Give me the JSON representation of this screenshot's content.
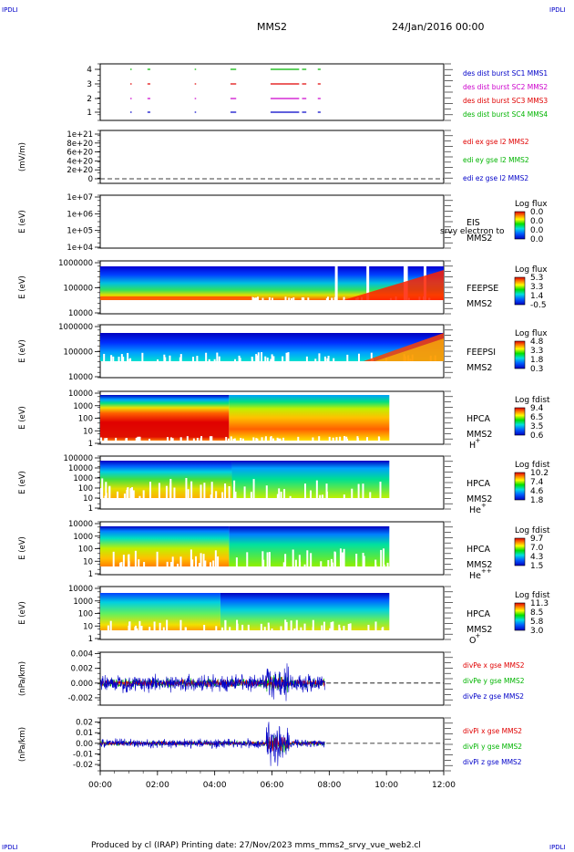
{
  "header": {
    "corner_tl": "IPDLI",
    "corner_tr": "IPDLI",
    "corner_bl": "IPDLI",
    "corner_br": "IPDLI",
    "mission": "MMS2",
    "date": "24/Jan/2016 00:00"
  },
  "footer": "Produced by cl (IRAP)   Printing date: 27/Nov/2023   mms_mms2_srvy_vue_web2.cl",
  "colors": {
    "blue": "#0000c8",
    "magenta": "#cc00cc",
    "red": "#e00000",
    "green": "#00b400"
  },
  "chart_data": [
    {
      "type": "line",
      "panel": "des_burst",
      "yticks": [
        "1",
        "2",
        "3",
        "4"
      ],
      "legend": [
        {
          "label": "des dist burst SC1 MMS1",
          "color": "#0000c8"
        },
        {
          "label": "des dist burst SC2 MMS2",
          "color": "#cc00cc"
        },
        {
          "label": "des dist burst SC3 MMS3",
          "color": "#e00000"
        },
        {
          "label": "des dist burst SC4 MMS4",
          "color": "#00b400"
        }
      ],
      "bursts_hours": [
        [
          1.05,
          1.1
        ],
        [
          1.65,
          1.75
        ],
        [
          3.3,
          3.35
        ],
        [
          4.55,
          4.75
        ],
        [
          5.95,
          6.95
        ],
        [
          7.05,
          7.2
        ],
        [
          7.6,
          7.7
        ]
      ]
    },
    {
      "type": "line",
      "panel": "edi_e",
      "ylabel": "(mV/m)",
      "yticks": [
        "0",
        "2e+20",
        "4e+20",
        "6e+20",
        "8e+20",
        "1e+21"
      ],
      "legend": [
        {
          "label": "edi ex gse l2 MMS2",
          "color": "#e00000"
        },
        {
          "label": "edi ey gse l2 MMS2",
          "color": "#00b400"
        },
        {
          "label": "edi ez gse l2 MMS2",
          "color": "#0000c8"
        }
      ]
    },
    {
      "type": "heatmap",
      "panel": "eis",
      "ylabel": "E (eV)",
      "yticks": [
        "1e+04",
        "1e+05",
        "1e+06",
        "1e+07"
      ],
      "name_lines": [
        "EIS",
        "MMS2"
      ],
      "overlay": "srvy electron to",
      "cbar_title": "Log flux",
      "cbar_ticks": [
        "0.0",
        "0.0",
        "0.0",
        "0.0"
      ]
    },
    {
      "type": "heatmap",
      "panel": "feepse",
      "ylabel": "E (eV)",
      "yticks": [
        "10000",
        "100000",
        "1000000"
      ],
      "name_lines": [
        "FEEPSE",
        "MMS2"
      ],
      "cbar_title": "Log flux",
      "cbar_ticks": [
        "5.3",
        "3.3",
        "1.4",
        "-0.5"
      ]
    },
    {
      "type": "heatmap",
      "panel": "feepsi",
      "ylabel": "E (eV)",
      "yticks": [
        "10000",
        "100000",
        "1000000"
      ],
      "name_lines": [
        "FEEPSI",
        "MMS2"
      ],
      "cbar_title": "Log flux",
      "cbar_ticks": [
        "4.8",
        "3.3",
        "1.8",
        "0.3"
      ]
    },
    {
      "type": "heatmap",
      "panel": "hpca_h",
      "ylabel": "E (eV)",
      "yticks": [
        "1",
        "10",
        "100",
        "1000",
        "10000"
      ],
      "name_lines": [
        "HPCA",
        "MMS2"
      ],
      "species": "H",
      "charge": "+",
      "cbar_title": "Log fdist",
      "cbar_ticks": [
        "9.4",
        "6.5",
        "3.5",
        "0.6"
      ]
    },
    {
      "type": "heatmap",
      "panel": "hpca_he",
      "ylabel": "E (eV)",
      "yticks": [
        "1",
        "10",
        "100",
        "1000",
        "10000",
        "100000"
      ],
      "name_lines": [
        "HPCA",
        "MMS2"
      ],
      "species": "He",
      "charge": "+",
      "cbar_title": "Log fdist",
      "cbar_ticks": [
        "10.2",
        "7.4",
        "4.6",
        "1.8"
      ]
    },
    {
      "type": "heatmap",
      "panel": "hpca_hepp",
      "ylabel": "E (eV)",
      "yticks": [
        "1",
        "10",
        "100",
        "1000",
        "10000"
      ],
      "name_lines": [
        "HPCA",
        "MMS2"
      ],
      "species": "He",
      "charge": "++",
      "cbar_title": "Log fdist",
      "cbar_ticks": [
        "9.7",
        "7.0",
        "4.3",
        "1.5"
      ]
    },
    {
      "type": "heatmap",
      "panel": "hpca_o",
      "ylabel": "E (eV)",
      "yticks": [
        "1",
        "10",
        "100",
        "1000",
        "10000"
      ],
      "name_lines": [
        "HPCA",
        "MMS2"
      ],
      "species": "O",
      "charge": "+",
      "cbar_title": "Log fdist",
      "cbar_ticks": [
        "11.3",
        "8.5",
        "5.8",
        "3.0"
      ]
    },
    {
      "type": "line",
      "panel": "divpe",
      "ylabel": "(nPa/km)",
      "yticks": [
        "-0.002",
        "0.000",
        "0.002",
        "0.004"
      ],
      "ylim": [
        -0.003,
        0.0042
      ],
      "legend": [
        {
          "label": "divPe x gse MMS2",
          "color": "#e00000"
        },
        {
          "label": "divPe y gse MMS2",
          "color": "#00b400"
        },
        {
          "label": "divPe z gse MMS2",
          "color": "#0000c8"
        }
      ]
    },
    {
      "type": "line",
      "panel": "divpi",
      "ylabel": "(nPa/km)",
      "yticks": [
        "-0.02",
        "-0.01",
        "0.00",
        "0.01",
        "0.02"
      ],
      "ylim": [
        -0.026,
        0.024
      ],
      "legend": [
        {
          "label": "divPi x gse MMS2",
          "color": "#e00000"
        },
        {
          "label": "divPi y gse MMS2",
          "color": "#00b400"
        },
        {
          "label": "divPi z gse MMS2",
          "color": "#0000c8"
        }
      ]
    }
  ],
  "x_axis": {
    "ticks": [
      "00:00",
      "02:00",
      "04:00",
      "06:00",
      "08:00",
      "10:00",
      "12:00"
    ],
    "range_hours": [
      0,
      12
    ]
  }
}
